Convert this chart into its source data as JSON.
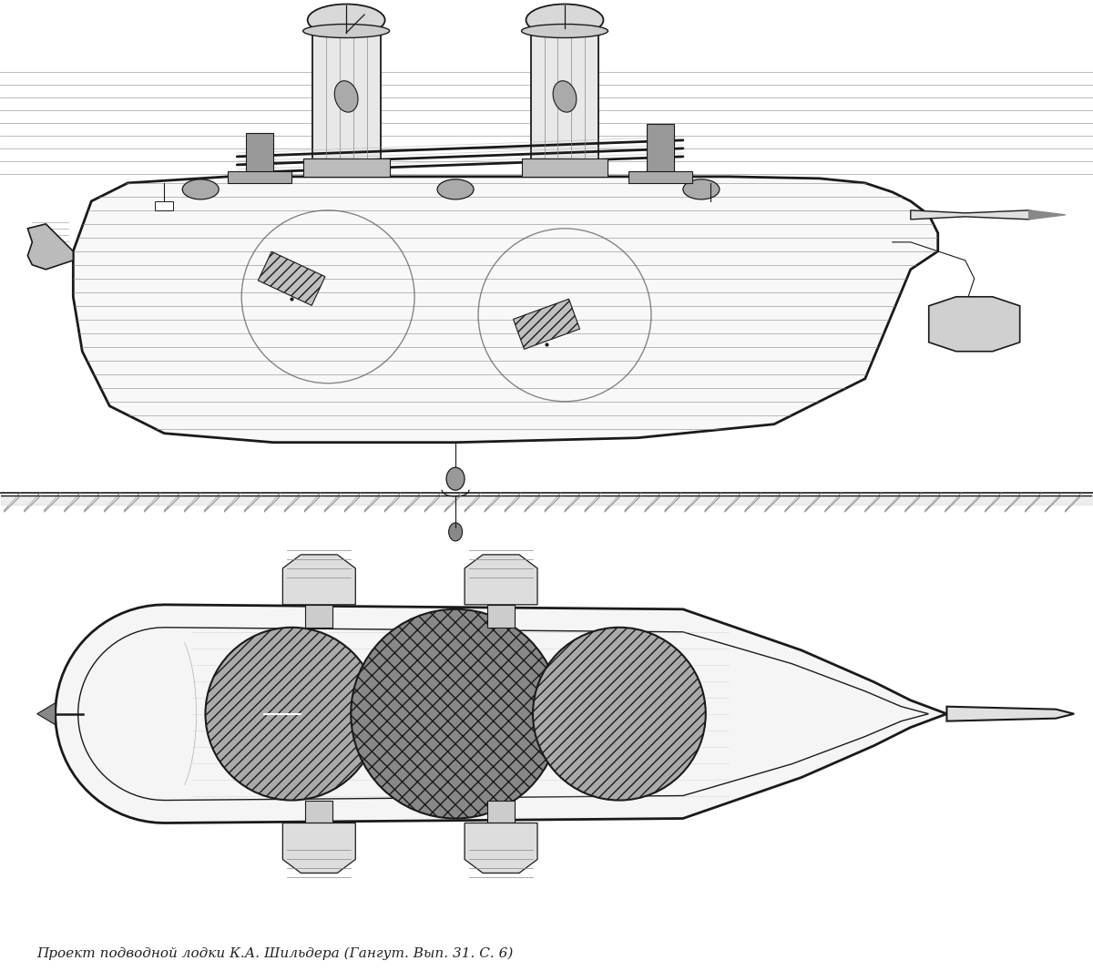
{
  "caption": "Проект подводной лодки К.А. Шильдера (Гангут. Вып. 31. С. 6)",
  "bg_color": "#ffffff",
  "line_color": "#1a1a1a",
  "fig_width": 12,
  "fig_height": 10.66
}
